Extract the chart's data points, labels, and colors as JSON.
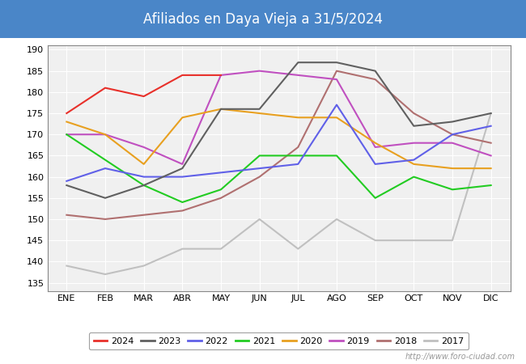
{
  "title": "Afiliados en Daya Vieja a 31/5/2024",
  "title_bg_color": "#4a86c8",
  "title_text_color": "white",
  "months": [
    "ENE",
    "FEB",
    "MAR",
    "ABR",
    "MAY",
    "JUN",
    "JUL",
    "AGO",
    "SEP",
    "OCT",
    "NOV",
    "DIC"
  ],
  "ylim": [
    133,
    191
  ],
  "yticks": [
    135,
    140,
    145,
    150,
    155,
    160,
    165,
    170,
    175,
    180,
    185,
    190
  ],
  "series": {
    "2024": {
      "color": "#e8302a",
      "data": [
        175,
        181,
        179,
        184,
        184,
        null,
        null,
        null,
        null,
        null,
        null,
        null
      ]
    },
    "2023": {
      "color": "#606060",
      "data": [
        158,
        155,
        158,
        162,
        176,
        176,
        187,
        187,
        185,
        172,
        173,
        175
      ]
    },
    "2022": {
      "color": "#6060e8",
      "data": [
        159,
        162,
        160,
        160,
        161,
        162,
        163,
        177,
        163,
        164,
        170,
        172
      ]
    },
    "2021": {
      "color": "#22cc22",
      "data": [
        170,
        164,
        158,
        154,
        157,
        165,
        165,
        165,
        155,
        160,
        157,
        158
      ]
    },
    "2020": {
      "color": "#e8a020",
      "data": [
        173,
        170,
        163,
        174,
        176,
        175,
        174,
        174,
        168,
        163,
        162,
        162
      ]
    },
    "2019": {
      "color": "#c050c0",
      "data": [
        170,
        170,
        167,
        163,
        184,
        185,
        184,
        183,
        167,
        168,
        168,
        165
      ]
    },
    "2018": {
      "color": "#b07070",
      "data": [
        151,
        150,
        151,
        152,
        155,
        160,
        167,
        185,
        183,
        175,
        170,
        168
      ]
    },
    "2017": {
      "color": "#c0c0c0",
      "data": [
        139,
        137,
        139,
        143,
        143,
        150,
        143,
        150,
        145,
        145,
        145,
        175
      ]
    }
  },
  "watermark": "http://www.foro-ciudad.com",
  "plot_bg_color": "#f0f0f0",
  "grid_color": "#ffffff"
}
